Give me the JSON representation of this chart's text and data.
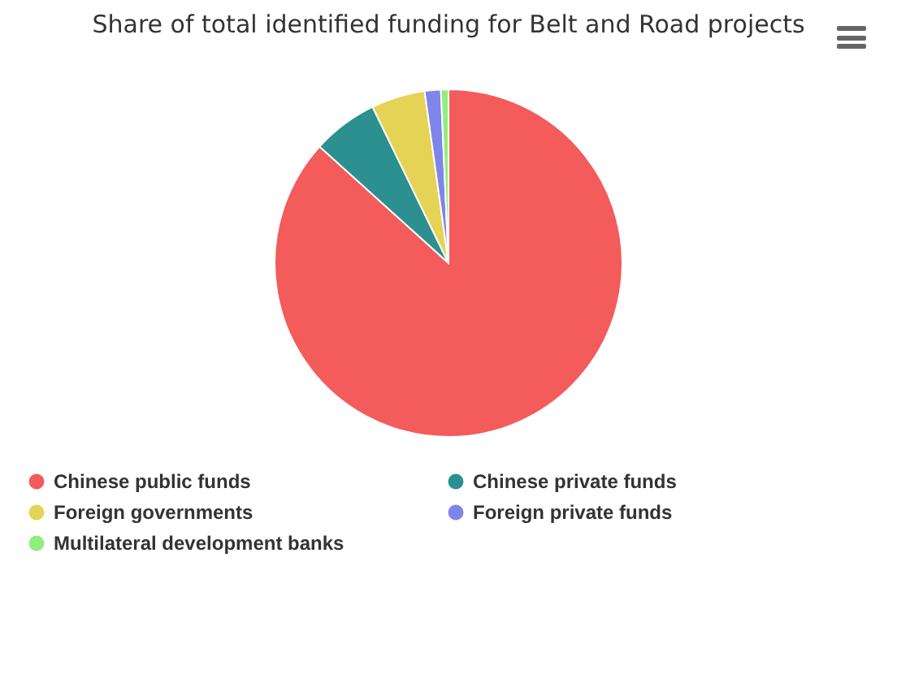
{
  "chart_data": {
    "type": "pie",
    "title": "Share of total identified funding for Belt and Road projects",
    "categories": [
      "Chinese public funds",
      "Chinese private funds",
      "Foreign governments",
      "Foreign private funds",
      "Multilateral development banks"
    ],
    "values": [
      86.7,
      6.1,
      5.0,
      1.5,
      0.7
    ],
    "colors": [
      "#f45b5b",
      "#2b908f",
      "#e4d354",
      "#8085e9",
      "#90ee7e"
    ],
    "legend": "bottom"
  }
}
